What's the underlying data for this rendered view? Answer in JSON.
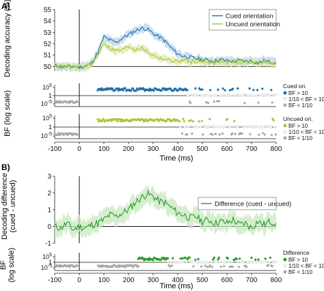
{
  "panel_labels": [
    "A)",
    "B)"
  ],
  "colors": {
    "cued": "#1f6fa8",
    "cued_band": "#b9d4ea",
    "uncued": "#a6c83a",
    "uncued_band": "#dbeaa8",
    "difference": "#2a9a2a",
    "difference_band": "#c8e8c0",
    "bf_low": "#a8a8a8",
    "axis": "#222222"
  },
  "chart_data": [
    {
      "id": "accuracy",
      "type": "line",
      "ylabel": "Decoding accuracy (%)",
      "xlim": [
        -100,
        800
      ],
      "ylim": [
        49.6,
        55
      ],
      "yticks": [
        50,
        51,
        52,
        53,
        54,
        55
      ],
      "chance_level": 50,
      "onset_line": 0,
      "legend_position": "top-right",
      "x": [
        -100,
        -75,
        -50,
        -25,
        0,
        25,
        50,
        75,
        100,
        125,
        150,
        175,
        200,
        225,
        250,
        275,
        300,
        325,
        350,
        375,
        400,
        425,
        450,
        475,
        500,
        525,
        550,
        575,
        600,
        625,
        650,
        675,
        700,
        725,
        750,
        775,
        800
      ],
      "series": [
        {
          "name": "Cued orientation",
          "values": [
            50.05,
            50.0,
            49.95,
            50.0,
            49.95,
            50.0,
            50.3,
            51.2,
            52.6,
            52.3,
            52.1,
            52.5,
            52.8,
            53.1,
            53.35,
            53.3,
            52.9,
            52.6,
            52.2,
            51.6,
            51.1,
            50.9,
            50.8,
            50.7,
            50.6,
            50.55,
            50.5,
            50.6,
            50.5,
            50.45,
            50.5,
            50.45,
            50.5,
            50.3,
            50.5,
            50.4,
            50.35
          ],
          "band": 0.35
        },
        {
          "name": "Uncued orientation",
          "values": [
            50.1,
            49.95,
            50.05,
            49.9,
            50.0,
            50.0,
            50.2,
            51.0,
            52.1,
            51.6,
            51.4,
            51.45,
            51.8,
            51.5,
            51.65,
            51.3,
            51.0,
            50.75,
            50.65,
            50.5,
            50.45,
            50.55,
            50.4,
            50.5,
            50.45,
            50.4,
            50.35,
            50.5,
            50.3,
            50.45,
            50.35,
            50.4,
            50.35,
            50.3,
            50.4,
            50.3,
            50.25
          ],
          "band": 0.3
        }
      ]
    },
    {
      "id": "bf_accuracy",
      "type": "scatter",
      "ylabel": "BF (log scale)",
      "yscale": "log",
      "ytick_labels": [
        "10^5",
        "1",
        "10^-5"
      ],
      "xlim": [
        -100,
        800
      ],
      "strips": [
        {
          "legend_title": "Cued ori.",
          "segments": [
            {
              "x0": -100,
              "x1": -5,
              "cls": "low"
            },
            {
              "x0": 75,
              "x1": 440,
              "cls": "high"
            },
            {
              "x0": 440,
              "x1": 800,
              "cls": "mixed"
            }
          ]
        },
        {
          "legend_title": "Uncued ori.",
          "segments": [
            {
              "x0": -100,
              "x1": -5,
              "cls": "low"
            },
            {
              "x0": 75,
              "x1": 410,
              "cls": "high"
            },
            {
              "x0": 410,
              "x1": 800,
              "cls": "mixed"
            }
          ]
        }
      ],
      "legend": [
        "BF > 10",
        "1/10 < BF < 10",
        "BF < 1/10"
      ]
    },
    {
      "id": "difference",
      "type": "line",
      "ylabel_lines": [
        "Decoding difference",
        "(cued - uncued)"
      ],
      "xlabel": "Time (ms)",
      "xlim": [
        -100,
        800
      ],
      "ylim": [
        -1,
        3
      ],
      "yticks": [
        -1,
        0,
        1,
        2,
        3
      ],
      "onset_line": 0,
      "legend_position": "top-right",
      "x": [
        -100,
        -75,
        -50,
        -25,
        0,
        25,
        50,
        75,
        100,
        125,
        150,
        175,
        200,
        225,
        250,
        275,
        300,
        325,
        350,
        375,
        400,
        425,
        450,
        475,
        500,
        525,
        550,
        575,
        600,
        625,
        650,
        675,
        700,
        725,
        750,
        775,
        800
      ],
      "series": [
        {
          "name": "Difference (cued - uncued)",
          "values": [
            0.0,
            -0.1,
            0.2,
            -0.2,
            0.0,
            -0.1,
            0.1,
            0.2,
            0.4,
            0.7,
            0.6,
            0.8,
            1.0,
            1.4,
            1.7,
            1.95,
            1.8,
            1.5,
            1.4,
            1.1,
            0.8,
            0.7,
            0.5,
            0.6,
            0.3,
            0.4,
            0.2,
            0.3,
            0.2,
            0.4,
            0.1,
            0.2,
            -0.1,
            0.3,
            0.1,
            0.3,
            0.2
          ],
          "band": 0.5
        }
      ]
    },
    {
      "id": "bf_difference",
      "type": "scatter",
      "ylabel_lines": [
        "BF",
        "(log scale)"
      ],
      "yscale": "log",
      "ytick_labels": [
        "10^5",
        "1",
        "10^-5"
      ],
      "xlabel": "Time (ms)",
      "xlim": [
        -100,
        800
      ],
      "xticks": [
        -100,
        0,
        100,
        200,
        300,
        400,
        500,
        600,
        700,
        800
      ],
      "strips": [
        {
          "legend_title": "Difference",
          "segments": [
            {
              "x0": -100,
              "x1": 240,
              "cls": "low"
            },
            {
              "x0": 240,
              "x1": 360,
              "cls": "high"
            },
            {
              "x0": 360,
              "x1": 800,
              "cls": "mixed"
            }
          ]
        }
      ],
      "legend": [
        "BF > 10",
        "1/10 < BF < 10",
        "BF < 1/10"
      ]
    }
  ]
}
